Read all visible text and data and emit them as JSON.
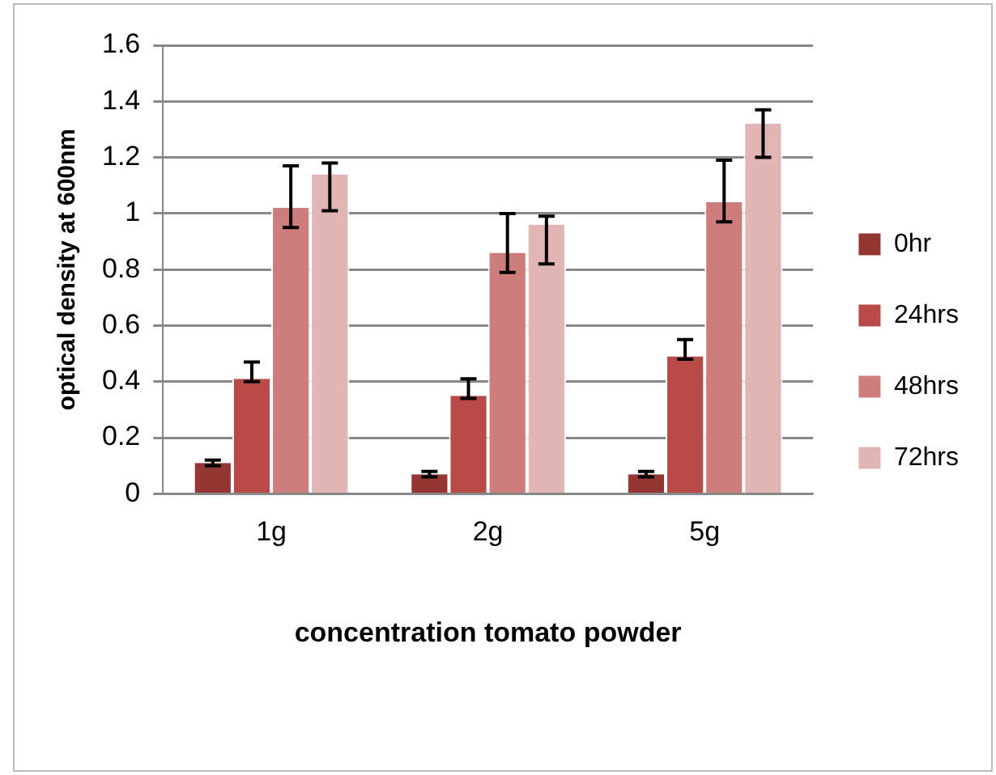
{
  "chart_data": {
    "type": "bar",
    "xlabel": "concentration tomato powder",
    "ylabel": "optical density at 600nm",
    "categories": [
      "1g",
      "2g",
      "5g"
    ],
    "series": [
      {
        "name": "0hr",
        "color": "#943634",
        "values": [
          0.11,
          0.07,
          0.07
        ],
        "errors": [
          [
            0.1,
            0.12
          ],
          [
            0.06,
            0.08
          ],
          [
            0.06,
            0.08
          ]
        ]
      },
      {
        "name": "24hrs",
        "color": "#b84a47",
        "values": [
          0.41,
          0.35,
          0.49
        ],
        "errors": [
          [
            0.4,
            0.47
          ],
          [
            0.34,
            0.41
          ],
          [
            0.48,
            0.55
          ]
        ]
      },
      {
        "name": "48hrs",
        "color": "#cd7e7c",
        "values": [
          1.02,
          0.86,
          1.04
        ],
        "errors": [
          [
            0.95,
            1.17
          ],
          [
            0.79,
            1.0
          ],
          [
            0.97,
            1.19
          ]
        ]
      },
      {
        "name": "72hrs",
        "color": "#e0b5b4",
        "values": [
          1.14,
          0.96,
          1.32
        ],
        "errors": [
          [
            1.01,
            1.18
          ],
          [
            0.82,
            0.99
          ],
          [
            1.2,
            1.37
          ]
        ]
      }
    ],
    "ylim": [
      0,
      1.6
    ],
    "yticks": [
      0,
      0.2,
      0.4,
      0.6,
      0.8,
      1,
      1.2,
      1.4,
      1.6
    ],
    "grid": "y",
    "legend": "right"
  }
}
